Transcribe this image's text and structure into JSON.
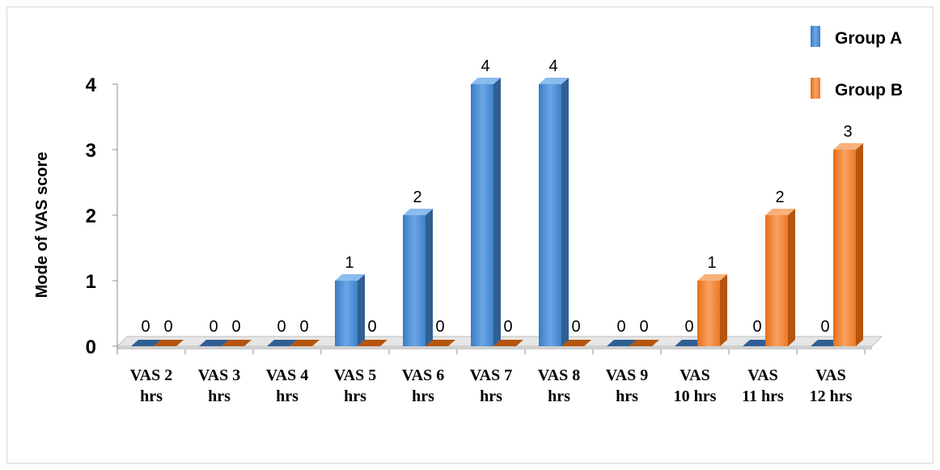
{
  "chart_data": {
    "type": "bar",
    "title": "",
    "xlabel": "",
    "ylabel": "Mode of VAS score",
    "ylim": [
      0,
      4
    ],
    "yticks": [
      "0",
      "1",
      "2",
      "3",
      "4"
    ],
    "categories": [
      [
        "VAS 2",
        "hrs"
      ],
      [
        "VAS 3",
        "hrs"
      ],
      [
        "VAS 4",
        "hrs"
      ],
      [
        "VAS 5",
        "hrs"
      ],
      [
        "VAS 6",
        "hrs"
      ],
      [
        "VAS 7",
        "hrs"
      ],
      [
        "VAS 8",
        "hrs"
      ],
      [
        "VAS 9",
        "hrs"
      ],
      [
        "VAS",
        "10 hrs"
      ],
      [
        "VAS",
        "11 hrs"
      ],
      [
        "VAS",
        "12 hrs"
      ]
    ],
    "series": [
      {
        "name": "Group A",
        "values": [
          0,
          0,
          0,
          1,
          2,
          4,
          4,
          0,
          0,
          0,
          0
        ],
        "color": "#4a8ed6"
      },
      {
        "name": "Group B",
        "values": [
          0,
          0,
          0,
          0,
          0,
          0,
          0,
          0,
          1,
          2,
          3
        ],
        "color": "#f0822e"
      }
    ],
    "grid": false,
    "legend_position": "top-right",
    "bar_style": "3d"
  }
}
